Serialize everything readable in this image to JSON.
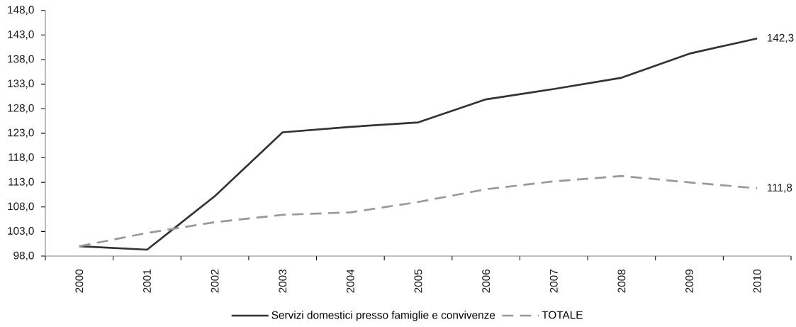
{
  "chart_data": {
    "type": "line",
    "categories": [
      "2000",
      "2001",
      "2002",
      "2003",
      "2004",
      "2005",
      "2006",
      "2007",
      "2008",
      "2009",
      "2010"
    ],
    "series": [
      {
        "name": "Servizi domestici presso famiglie e convivenze",
        "color": "#333333",
        "line_style": "solid",
        "values": [
          100.0,
          99.3,
          110.2,
          123.2,
          124.3,
          125.2,
          129.9,
          132.0,
          134.3,
          139.2,
          142.3
        ],
        "value_labels": [
          null,
          null,
          null,
          null,
          null,
          null,
          null,
          null,
          null,
          null,
          "142,3"
        ]
      },
      {
        "name": "TOTALE",
        "color": "#999999",
        "line_style": "dashed",
        "values": [
          100.0,
          102.7,
          104.9,
          106.4,
          106.9,
          109.0,
          111.6,
          113.2,
          114.3,
          113.0,
          111.8
        ],
        "value_labels": [
          null,
          null,
          null,
          null,
          null,
          null,
          null,
          null,
          null,
          null,
          "111,8"
        ]
      }
    ],
    "ylim": [
      98,
      148
    ],
    "yticks": [
      {
        "value": 98,
        "label": "98,0"
      },
      {
        "value": 103,
        "label": "103,0"
      },
      {
        "value": 108,
        "label": "108,0"
      },
      {
        "value": 113,
        "label": "113,0"
      },
      {
        "value": 118,
        "label": "118,0"
      },
      {
        "value": 123,
        "label": "123,0"
      },
      {
        "value": 128,
        "label": "128,0"
      },
      {
        "value": 133,
        "label": "133,0"
      },
      {
        "value": 138,
        "label": "138,0"
      },
      {
        "value": 143,
        "label": "143,0"
      },
      {
        "value": 148,
        "label": "148,0"
      }
    ],
    "legend": "bottom"
  }
}
